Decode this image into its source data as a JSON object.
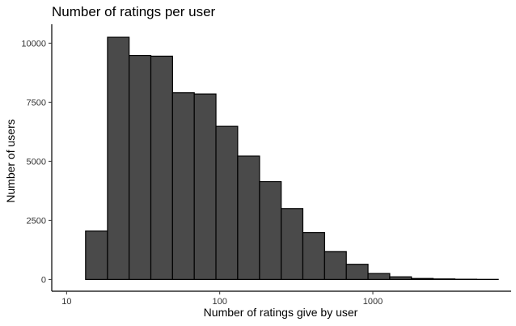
{
  "chart_data": {
    "type": "bar",
    "title": "Number of ratings per user",
    "xlabel": "Number of ratings give by user",
    "ylabel": "Number of users",
    "x_scale": "log10",
    "x_ticks": [
      10,
      100,
      1000
    ],
    "x_tick_labels": [
      "10",
      "100",
      "1000"
    ],
    "xlim": [
      8,
      8000
    ],
    "y_ticks": [
      0,
      2500,
      5000,
      7500,
      10000
    ],
    "y_tick_labels": [
      "0",
      "2500",
      "5000",
      "7500",
      "10000"
    ],
    "ylim": [
      -500,
      10800
    ],
    "grid": false,
    "bar_color": "#4a4a4a",
    "bar_edge_color": "#000000",
    "bins": [
      {
        "x0": 9.6,
        "x1": 13.3,
        "value": 0
      },
      {
        "x0": 13.3,
        "x1": 18.5,
        "value": 2050
      },
      {
        "x0": 18.5,
        "x1": 25.6,
        "value": 10250
      },
      {
        "x0": 25.6,
        "x1": 35.5,
        "value": 9480
      },
      {
        "x0": 35.5,
        "x1": 49.2,
        "value": 9450
      },
      {
        "x0": 49.2,
        "x1": 68.2,
        "value": 7900
      },
      {
        "x0": 68.2,
        "x1": 94.5,
        "value": 7850
      },
      {
        "x0": 94.5,
        "x1": 131,
        "value": 6480
      },
      {
        "x0": 131,
        "x1": 182,
        "value": 5220
      },
      {
        "x0": 182,
        "x1": 252,
        "value": 4140
      },
      {
        "x0": 252,
        "x1": 349,
        "value": 3000
      },
      {
        "x0": 349,
        "x1": 484,
        "value": 1980
      },
      {
        "x0": 484,
        "x1": 671,
        "value": 1180
      },
      {
        "x0": 671,
        "x1": 930,
        "value": 640
      },
      {
        "x0": 930,
        "x1": 1289,
        "value": 250
      },
      {
        "x0": 1289,
        "x1": 1786,
        "value": 110
      },
      {
        "x0": 1786,
        "x1": 2476,
        "value": 40
      },
      {
        "x0": 2476,
        "x1": 3432,
        "value": 20
      },
      {
        "x0": 3432,
        "x1": 4757,
        "value": 8
      },
      {
        "x0": 4757,
        "x1": 6593,
        "value": 3
      }
    ]
  }
}
